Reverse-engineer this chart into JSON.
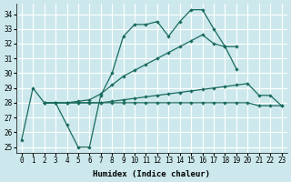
{
  "xlabel": "Humidex (Indice chaleur)",
  "background_color": "#cce8ec",
  "grid_color": "#ffffff",
  "line_color": "#1a6b5e",
  "xlim": [
    -0.5,
    23.5
  ],
  "ylim": [
    24.6,
    34.7
  ],
  "yticks": [
    25,
    26,
    27,
    28,
    29,
    30,
    31,
    32,
    33,
    34
  ],
  "xticks": [
    0,
    1,
    2,
    3,
    4,
    5,
    6,
    7,
    8,
    9,
    10,
    11,
    12,
    13,
    14,
    15,
    16,
    17,
    18,
    19,
    20,
    21,
    22,
    23
  ],
  "curve1_x": [
    0,
    1,
    2,
    3,
    4,
    5,
    6,
    7,
    8,
    9,
    10,
    11,
    12,
    13,
    14,
    15,
    16,
    17,
    18,
    19
  ],
  "curve1_y": [
    25.5,
    29.0,
    28.0,
    28.0,
    26.5,
    25.0,
    25.0,
    28.5,
    30.0,
    32.5,
    33.3,
    33.3,
    33.5,
    32.5,
    33.5,
    34.3,
    34.3,
    33.0,
    31.8,
    30.3
  ],
  "curve2_x": [
    2,
    3,
    4,
    5,
    6,
    7,
    8,
    9,
    10,
    11,
    12,
    13,
    14,
    15,
    16,
    17,
    18,
    19
  ],
  "curve2_y": [
    28.0,
    28.0,
    28.0,
    28.1,
    28.2,
    28.6,
    29.2,
    29.8,
    30.2,
    30.6,
    31.0,
    31.4,
    31.8,
    32.2,
    32.6,
    32.0,
    31.8,
    31.8
  ],
  "curve3_x": [
    2,
    3,
    4,
    5,
    6,
    7,
    8,
    9,
    10,
    11,
    12,
    13,
    14,
    15,
    16,
    17,
    18,
    19,
    20,
    21,
    22,
    23
  ],
  "curve3_y": [
    28.0,
    28.0,
    28.0,
    28.0,
    28.0,
    28.0,
    28.1,
    28.2,
    28.3,
    28.4,
    28.5,
    28.6,
    28.7,
    28.8,
    28.9,
    29.0,
    29.1,
    29.2,
    29.3,
    28.5,
    28.5,
    27.8
  ],
  "curve4_x": [
    2,
    3,
    4,
    5,
    6,
    7,
    8,
    9,
    10,
    11,
    12,
    13,
    14,
    15,
    16,
    17,
    18,
    19,
    20,
    21,
    22,
    23
  ],
  "curve4_y": [
    28.0,
    28.0,
    28.0,
    28.0,
    28.0,
    28.0,
    28.0,
    28.0,
    28.0,
    28.0,
    28.0,
    28.0,
    28.0,
    28.0,
    28.0,
    28.0,
    28.0,
    28.0,
    28.0,
    27.8,
    27.8,
    27.8
  ]
}
